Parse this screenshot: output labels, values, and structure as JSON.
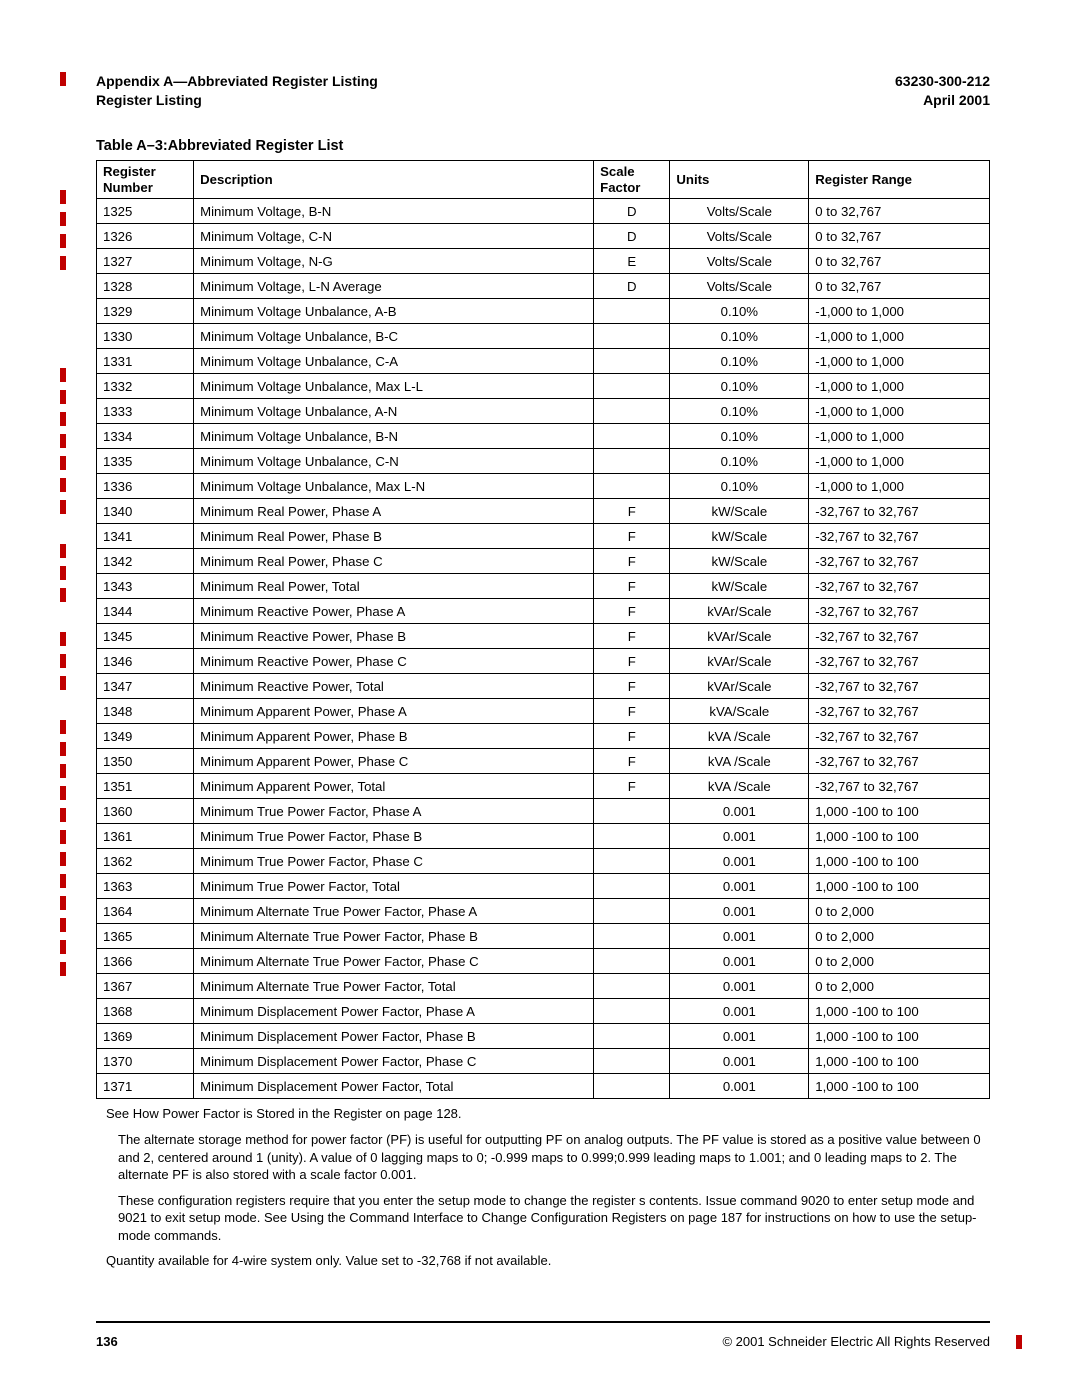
{
  "header": {
    "left1": "Appendix A—Abbreviated Register Listing",
    "left2": "Register Listing",
    "right1": "63230-300-212",
    "right2": "April 2001"
  },
  "table_title": "Table A–3:Abbreviated Register List",
  "columns": {
    "reg": "Register Number",
    "desc": "Description",
    "scale": "Scale Factor",
    "units": "Units",
    "range": "Register Range"
  },
  "rows": [
    {
      "reg": "1325",
      "desc": "Minimum Voltage, B-N",
      "scale": "D",
      "units": "Volts/Scale",
      "range": "0 to 32,767"
    },
    {
      "reg": "1326",
      "desc": "Minimum Voltage, C-N",
      "scale": "D",
      "units": "Volts/Scale",
      "range": "0 to 32,767"
    },
    {
      "reg": "1327",
      "desc": "Minimum Voltage, N-G",
      "scale": "E",
      "units": "Volts/Scale",
      "range": "0 to 32,767"
    },
    {
      "reg": "1328",
      "desc": "Minimum Voltage, L-N Average",
      "scale": "D",
      "units": "Volts/Scale",
      "range": "0 to 32,767"
    },
    {
      "reg": "1329",
      "desc": "Minimum Voltage Unbalance, A-B",
      "scale": "",
      "units": "0.10%",
      "range": "-1,000 to 1,000"
    },
    {
      "reg": "1330",
      "desc": "Minimum Voltage Unbalance, B-C",
      "scale": "",
      "units": "0.10%",
      "range": "-1,000 to 1,000"
    },
    {
      "reg": "1331",
      "desc": "Minimum Voltage Unbalance, C-A",
      "scale": "",
      "units": "0.10%",
      "range": "-1,000 to 1,000"
    },
    {
      "reg": "1332",
      "desc": "Minimum Voltage Unbalance, Max L-L",
      "scale": "",
      "units": "0.10%",
      "range": "-1,000 to 1,000"
    },
    {
      "reg": "1333",
      "desc": "Minimum Voltage Unbalance, A-N",
      "scale": "",
      "units": "0.10%",
      "range": "-1,000 to 1,000"
    },
    {
      "reg": "1334",
      "desc": "Minimum Voltage Unbalance, B-N",
      "scale": "",
      "units": "0.10%",
      "range": "-1,000 to 1,000"
    },
    {
      "reg": "1335",
      "desc": "Minimum Voltage Unbalance, C-N",
      "scale": "",
      "units": "0.10%",
      "range": "-1,000 to 1,000"
    },
    {
      "reg": "1336",
      "desc": "Minimum Voltage Unbalance, Max L-N",
      "scale": "",
      "units": "0.10%",
      "range": "-1,000 to 1,000"
    },
    {
      "reg": "1340",
      "desc": "Minimum Real Power, Phase A",
      "scale": "F",
      "units": "kW/Scale",
      "range": "-32,767 to 32,767"
    },
    {
      "reg": "1341",
      "desc": "Minimum Real Power, Phase B",
      "scale": "F",
      "units": "kW/Scale",
      "range": "-32,767 to 32,767"
    },
    {
      "reg": "1342",
      "desc": "Minimum Real Power, Phase C",
      "scale": "F",
      "units": "kW/Scale",
      "range": "-32,767 to 32,767"
    },
    {
      "reg": "1343",
      "desc": "Minimum Real Power, Total",
      "scale": "F",
      "units": "kW/Scale",
      "range": "-32,767 to 32,767"
    },
    {
      "reg": "1344",
      "desc": "Minimum Reactive Power, Phase A",
      "scale": "F",
      "units": "kVAr/Scale",
      "range": "-32,767 to 32,767"
    },
    {
      "reg": "1345",
      "desc": "Minimum Reactive Power, Phase B",
      "scale": "F",
      "units": "kVAr/Scale",
      "range": "-32,767 to 32,767"
    },
    {
      "reg": "1346",
      "desc": "Minimum Reactive Power, Phase C",
      "scale": "F",
      "units": "kVAr/Scale",
      "range": "-32,767 to 32,767"
    },
    {
      "reg": "1347",
      "desc": "Minimum Reactive Power, Total",
      "scale": "F",
      "units": "kVAr/Scale",
      "range": "-32,767 to 32,767"
    },
    {
      "reg": "1348",
      "desc": "Minimum Apparent Power, Phase A",
      "scale": "F",
      "units": "kVA/Scale",
      "range": "-32,767 to 32,767"
    },
    {
      "reg": "1349",
      "desc": "Minimum Apparent Power, Phase B",
      "scale": "F",
      "units": "kVA /Scale",
      "range": "-32,767 to 32,767"
    },
    {
      "reg": "1350",
      "desc": "Minimum Apparent Power, Phase C",
      "scale": "F",
      "units": "kVA /Scale",
      "range": "-32,767 to 32,767"
    },
    {
      "reg": "1351",
      "desc": "Minimum Apparent Power, Total",
      "scale": "F",
      "units": "kVA /Scale",
      "range": "-32,767 to 32,767"
    },
    {
      "reg": "1360",
      "desc": "Minimum True Power Factor, Phase A",
      "scale": "",
      "units": "0.001",
      "range": "1,000 -100 to 100"
    },
    {
      "reg": "1361",
      "desc": "Minimum True Power Factor, Phase B",
      "scale": "",
      "units": "0.001",
      "range": "1,000 -100 to 100"
    },
    {
      "reg": "1362",
      "desc": "Minimum True Power Factor, Phase C",
      "scale": "",
      "units": "0.001",
      "range": "1,000 -100 to 100"
    },
    {
      "reg": "1363",
      "desc": "Minimum True Power Factor, Total",
      "scale": "",
      "units": "0.001",
      "range": "1,000 -100 to 100"
    },
    {
      "reg": "1364",
      "desc": "Minimum Alternate True Power Factor, Phase A",
      "scale": "",
      "units": "0.001",
      "range": "0 to 2,000"
    },
    {
      "reg": "1365",
      "desc": "Minimum Alternate True Power Factor, Phase B",
      "scale": "",
      "units": "0.001",
      "range": "0 to 2,000"
    },
    {
      "reg": "1366",
      "desc": "Minimum Alternate True Power Factor, Phase C",
      "scale": "",
      "units": "0.001",
      "range": "0 to 2,000"
    },
    {
      "reg": "1367",
      "desc": "Minimum Alternate True Power Factor, Total",
      "scale": "",
      "units": "0.001",
      "range": "0 to 2,000"
    },
    {
      "reg": "1368",
      "desc": "Minimum Displacement Power Factor, Phase A",
      "scale": "",
      "units": "0.001",
      "range": "1,000 -100 to 100"
    },
    {
      "reg": "1369",
      "desc": "Minimum Displacement Power Factor, Phase B",
      "scale": "",
      "units": "0.001",
      "range": "1,000 -100 to 100"
    },
    {
      "reg": "1370",
      "desc": "Minimum Displacement Power Factor, Phase C",
      "scale": "",
      "units": "0.001",
      "range": "1,000 -100 to 100"
    },
    {
      "reg": "1371",
      "desc": "Minimum Displacement Power Factor, Total",
      "scale": "",
      "units": "0.001",
      "range": "1,000 -100 to 100"
    }
  ],
  "notes": {
    "n1": "See  How Power Factor is Stored in the Register  on page 128.",
    "n2": "The alternate storage method for power factor (PF) is useful for outputting PF on analog outputs. The PF value is stored as a positive value between 0 and 2, centered around 1 (unity). A value of 0 lagging maps to 0; -0.999 maps to 0.999;0.999 leading maps to 1.001; and 0 leading maps to 2. The alternate PF is also stored with a scale factor 0.001.",
    "n3": "These configuration registers require that you enter the setup mode to change the register s contents. Issue command 9020 to enter setup mode and 9021 to exit setup mode. See  Using the Command Interface to Change Configuration Registers  on page 187 for instructions on how to use the setup-mode commands.",
    "n4": "Quantity available for 4-wire system only. Value set to -32,768 if not available."
  },
  "footer": {
    "page": "136",
    "copyright": "© 2001 Schneider Electric  All Rights Reserved"
  },
  "mark_color": "#c00000",
  "left_mark_tops": [
    72,
    190,
    212,
    234,
    256,
    368,
    390,
    412,
    434,
    456,
    478,
    500,
    544,
    566,
    588,
    632,
    654,
    676,
    720,
    742,
    764,
    786,
    808,
    830,
    852,
    874,
    896,
    918,
    940,
    962
  ]
}
